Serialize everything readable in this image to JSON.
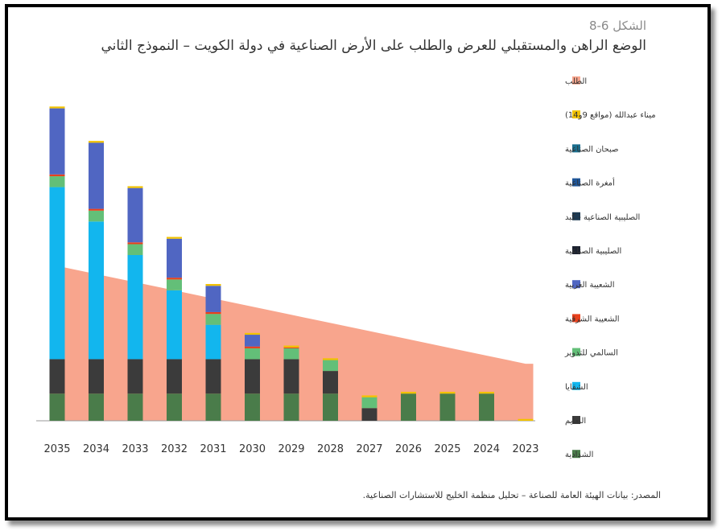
{
  "figure": {
    "label": "الشكل 6-8",
    "title": "الوضع الراهن والمستقبلي للعرض والطلب على الأرض الصناعية في دولة الكويت – النموذج الثاني",
    "source": "المصدر: بيانات الهيئة العامة للصناعة – تحليل منظمة الخليج للاستشارات الصناعية."
  },
  "chart_data": {
    "type": "bar",
    "stacked": true,
    "categories": [
      "2035",
      "2034",
      "2033",
      "2032",
      "2031",
      "2030",
      "2029",
      "2028",
      "2027",
      "2026",
      "2025",
      "2024",
      "2023"
    ],
    "series": [
      {
        "name": "الشدادية",
        "color": "#4a7c4a",
        "values": [
          30,
          30,
          30,
          30,
          30,
          30,
          30,
          30,
          0,
          30,
          30,
          30,
          0
        ]
      },
      {
        "name": "النعايم",
        "color": "#3b3b3b",
        "values": [
          38,
          38,
          38,
          38,
          38,
          38,
          38,
          25,
          14,
          0,
          0,
          0,
          0
        ]
      },
      {
        "name": "الشقايا",
        "color": "#12b6ee",
        "values": [
          190,
          152,
          115,
          76,
          38,
          0,
          0,
          0,
          0,
          0,
          0,
          0,
          0
        ]
      },
      {
        "name": "السالمي للتدوير",
        "color": "#63bf78",
        "values": [
          12,
          12,
          12,
          12,
          12,
          12,
          12,
          12,
          12,
          0,
          0,
          0,
          0
        ]
      },
      {
        "name": "الشعيبة الشرقية",
        "color": "#e8401c",
        "values": [
          2,
          2,
          2,
          2,
          2,
          2,
          1,
          0,
          0,
          0,
          0,
          0,
          0
        ]
      },
      {
        "name": "الشعيبة الغربية",
        "color": "#5066c2",
        "values": [
          73,
          73,
          60,
          43,
          29,
          13,
          0,
          0,
          0,
          0,
          0,
          0,
          0
        ]
      },
      {
        "name": "الصليبية الصناعية",
        "color": "#1c2230",
        "values": [
          0,
          0,
          0,
          0,
          0,
          0,
          0,
          0,
          0,
          0,
          0,
          0,
          0
        ]
      },
      {
        "name": "الصليبية الصناعية - كبد",
        "color": "#1d3a52",
        "values": [
          0,
          0,
          0,
          0,
          0,
          0,
          0,
          0,
          0,
          0,
          0,
          0,
          0
        ]
      },
      {
        "name": "أمغرة الصناعية",
        "color": "#1f5699",
        "values": [
          0,
          0,
          0,
          0,
          0,
          0,
          0,
          0,
          0,
          0,
          0,
          0,
          0
        ]
      },
      {
        "name": "صبحان الصناعية",
        "color": "#1b6f8f",
        "values": [
          0,
          0,
          0,
          0,
          0,
          0,
          0,
          0,
          0,
          0,
          0,
          0,
          0
        ]
      },
      {
        "name": "ميناء عبدالله (مواقع 9و14)",
        "color": "#f2c200",
        "values": [
          2,
          2,
          2,
          2,
          2,
          2,
          2,
          2,
          2,
          2,
          2,
          2,
          2
        ]
      }
    ],
    "demand": {
      "name": "الطلب",
      "color": "#f8a58d",
      "values": [
        171,
        162,
        153,
        144,
        135,
        126,
        117,
        108,
        99,
        90,
        81,
        72,
        63
      ]
    },
    "legend_position": "right",
    "ylim": [
      0,
      350
    ],
    "grid": false
  }
}
